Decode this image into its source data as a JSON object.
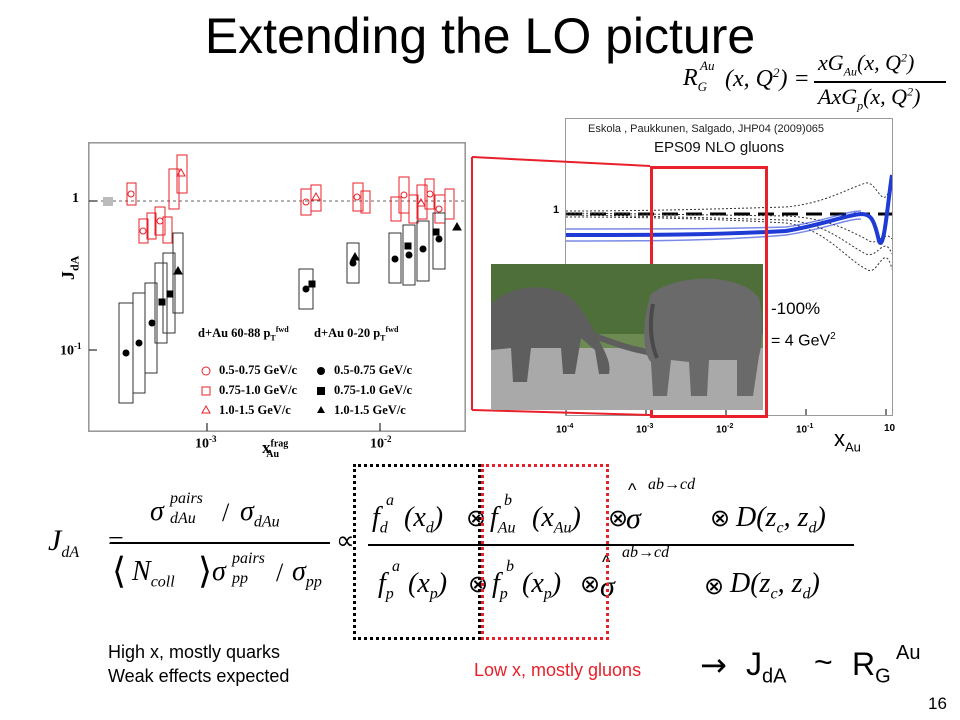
{
  "slide": {
    "title": "Extending the LO picture",
    "page_number": "16",
    "ratio_formula": {
      "lhs_R": "R",
      "lhs_sub": "G",
      "lhs_sup": "Au",
      "lhs_args": "(x, Q",
      "lhs_args_end": ") =",
      "num": "xG",
      "num_sub": "Au",
      "num_args": "(x, Q",
      "den": "AxG",
      "den_sub": "p",
      "den_args": "(x, Q",
      "close": ")"
    },
    "citation": "Eskola , Paukkunen, Salgado, JHP04 (2009)065",
    "eps_label": "EPS09 NLO gluons",
    "pct_label": "-100%",
    "q2_label": "= 4 GeV",
    "q2_sup": "2",
    "x_axis_label": "x",
    "x_axis_sub": "Au",
    "right_ticks": [
      "10",
      "10",
      "10",
      "10",
      "10",
      "1"
    ],
    "right_tick_exps": [
      "-4",
      "-3",
      "-2",
      "-1",
      ""
    ],
    "left_plot": {
      "y_label": "J",
      "y_sub": "dA",
      "y_ticks": [
        "1",
        "10"
      ],
      "y_tick_exp": "-1",
      "x_ticks": [
        "10",
        "10"
      ],
      "x_tick_exps": [
        "-3",
        "-2"
      ],
      "x_label": "x",
      "x_label_sup": "frag",
      "x_label_sub": "Au",
      "legend_head_left": "d+Au 60-88 p",
      "legend_head_right": "d+Au 0-20 p",
      "legend_head_sup": "fwd",
      "legend_head_sub": "T",
      "legend_rows": [
        "0.5-0.75 GeV/c",
        "0.75-1.0 GeV/c",
        "1.0-1.5 GeV/c"
      ]
    },
    "main_formula": {
      "J": "J",
      "J_sub": "dA",
      "eq": "=",
      "sigma": "σ",
      "pairs": "pairs",
      "dAu": "dAu",
      "slash": "/",
      "sigma_dAu_sub": "dAu",
      "Ncoll": "N",
      "coll": "coll",
      "pp": "pp",
      "prop": "∝",
      "f": "f",
      "a": "a",
      "b": "b",
      "d_sub": "d",
      "Au_sub": "Au",
      "p_sub": "p",
      "xd": "(x",
      "xAu": "(x",
      "xp": "(x",
      "otimes": "⊗",
      "hat": "^",
      "process": "ab→cd",
      "D": "D",
      "zargs": "(z",
      "c": "c",
      "z2": ", z",
      "rparen": ")"
    },
    "caption_high_1": "High x, mostly quarks",
    "caption_high_2": "Weak effects expected",
    "caption_low": "Low x, mostly gluons",
    "arrow": "→",
    "result_J": "J",
    "result_J_sub": "dA",
    "result_tilde": "~",
    "result_R": "R",
    "result_R_sub": "G",
    "result_R_sup": "Au",
    "colors": {
      "red": "#e8202a",
      "blue": "#1f3bd6",
      "black": "#000000"
    }
  }
}
